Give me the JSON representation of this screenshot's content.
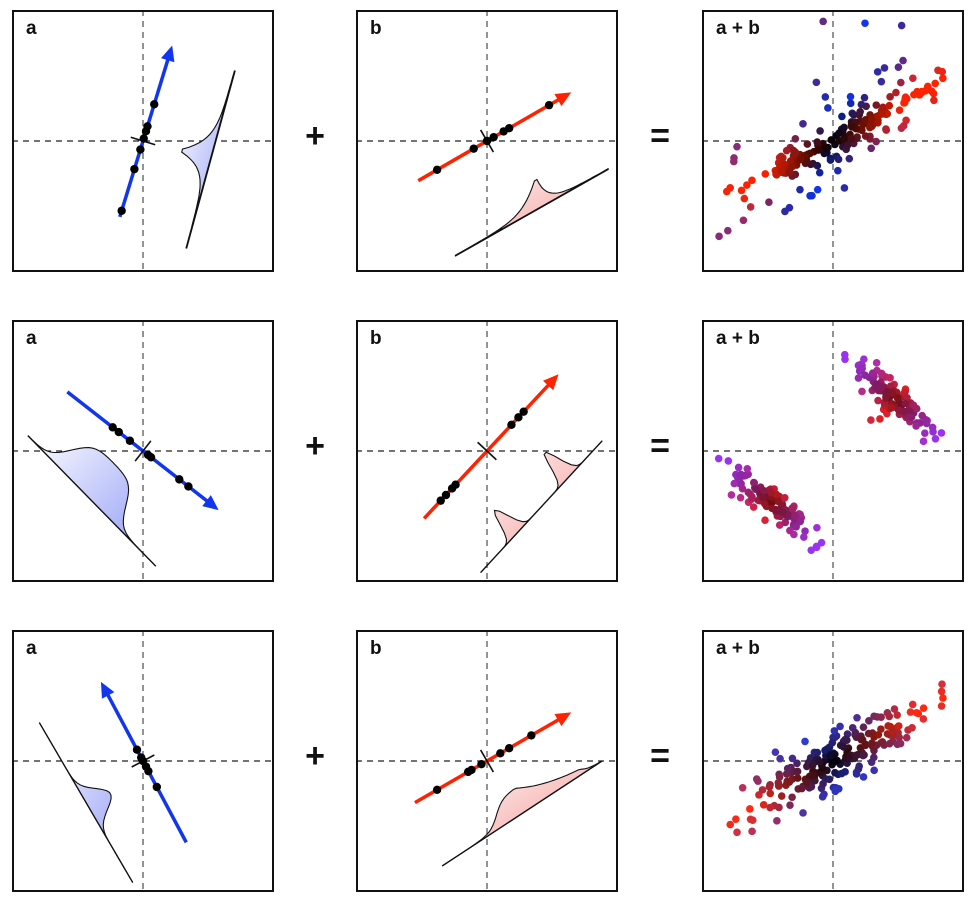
{
  "figure": {
    "rows": [
      {
        "a": {
          "label": "a",
          "angle_deg": 73,
          "arrow_color": "#1136ee",
          "arrow_extent": [
            -0.62,
            0.78
          ],
          "dots": [
            -0.57,
            -0.23,
            -0.07,
            0.02,
            0.08,
            0.12,
            0.3
          ],
          "density": {
            "type": "super-gaussian-peaked",
            "side": "right"
          }
        },
        "op1": "+",
        "b": {
          "label": "b",
          "angle_deg": 30,
          "arrow_color": "#ff2200",
          "arrow_extent": [
            -0.62,
            0.76
          ],
          "dots": [
            -0.45,
            -0.12,
            0.0,
            0.06,
            0.15,
            0.2,
            0.56
          ],
          "density": {
            "type": "super-gaussian-peaked",
            "side": "below"
          }
        },
        "op2": "=",
        "sum": {
          "label": "a + b",
          "pattern": "cross"
        }
      },
      {
        "a": {
          "label": "a",
          "angle_deg": -38,
          "arrow_color": "#1136ee",
          "arrow_extent": [
            -0.75,
            0.75
          ],
          "dots": [
            -0.3,
            -0.24,
            -0.13,
            0.05,
            0.08,
            0.36,
            0.45
          ],
          "density": {
            "type": "bimodal-flat",
            "side": "left"
          }
        },
        "op1": "+",
        "b": {
          "label": "b",
          "angle_deg": 47,
          "arrow_color": "#ff2200",
          "arrow_extent": [
            -0.72,
            0.82
          ],
          "dots": [
            -0.53,
            -0.47,
            -0.4,
            -0.36,
            0.28,
            0.36,
            0.42
          ],
          "density": {
            "type": "bimodal",
            "side": "below"
          }
        },
        "op2": "=",
        "sum": {
          "label": "a + b",
          "pattern": "two-clusters"
        }
      },
      {
        "a": {
          "label": "a",
          "angle_deg": 118,
          "arrow_color": "#1136ee",
          "arrow_extent": [
            -0.72,
            0.7
          ],
          "dots": [
            0.1,
            0.03,
            0.0,
            -0.05,
            -0.09,
            -0.23
          ],
          "density": {
            "type": "sub-gaussian",
            "side": "left"
          }
        },
        "op1": "+",
        "b": {
          "label": "b",
          "angle_deg": 30,
          "arrow_color": "#ff2200",
          "arrow_extent": [
            -0.65,
            0.76
          ],
          "dots": [
            -0.45,
            -0.17,
            -0.14,
            -0.05,
            0.12,
            0.2,
            0.4
          ],
          "density": {
            "type": "skewed",
            "side": "below"
          }
        },
        "op2": "=",
        "sum": {
          "label": "a + b",
          "pattern": "elongated"
        }
      }
    ],
    "colors": {
      "blue": "#1136ee",
      "red": "#ff2200",
      "fill_blue": "#8a95f5",
      "fill_red": "#f28a86",
      "axis": "#555555"
    }
  }
}
